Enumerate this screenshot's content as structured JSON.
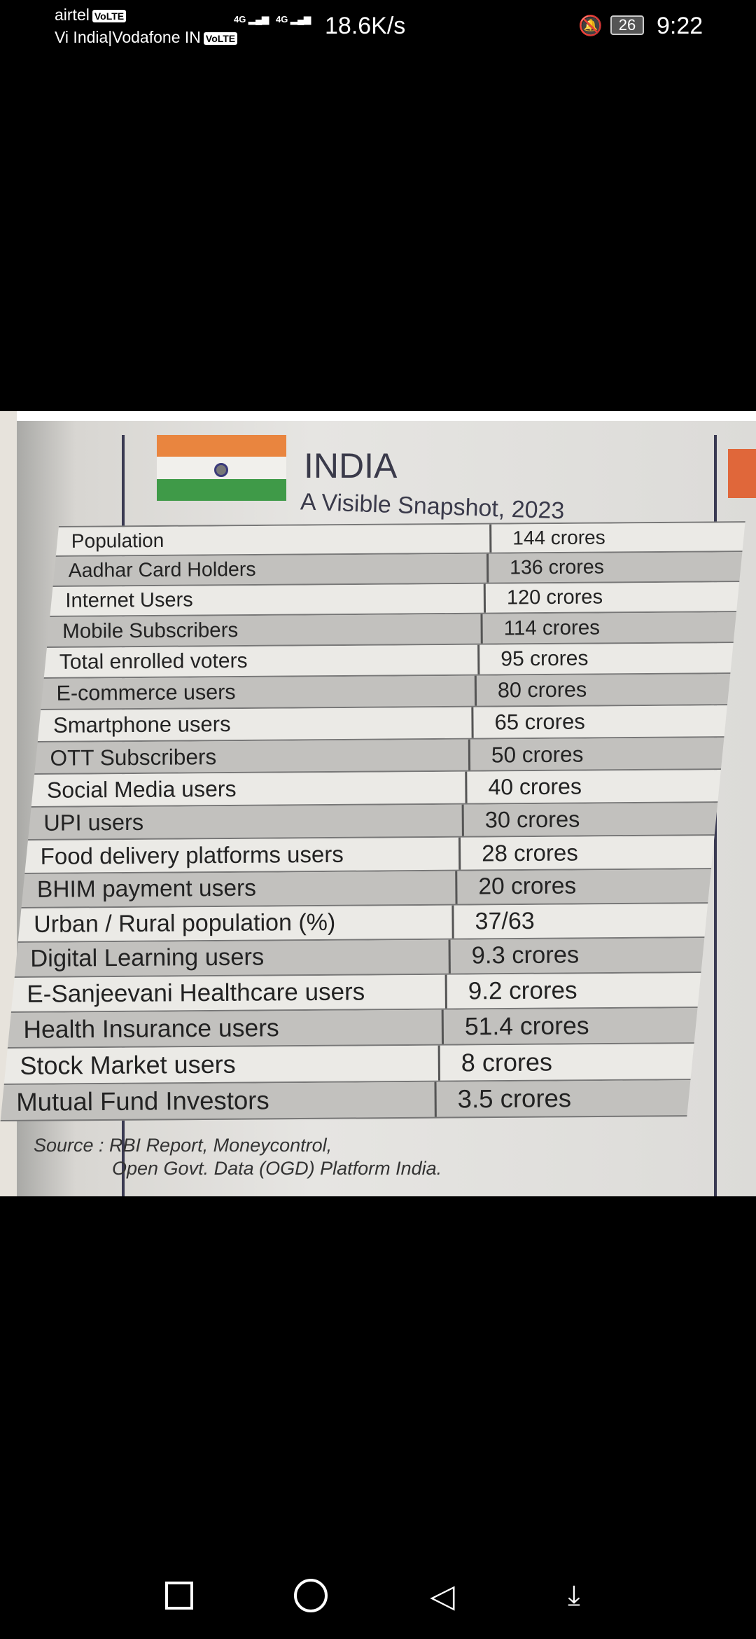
{
  "status_bar": {
    "carrier1": "airtel",
    "carrier2": "Vi India|Vodafone IN",
    "volte": "VoLTE",
    "network1": "4G",
    "network2": "4G",
    "speed": "18.6K/s",
    "battery": "26",
    "time": "9:22"
  },
  "photo": {
    "title": "INDIA",
    "subtitle": "A Visible Snapshot, 2023",
    "rows": [
      {
        "label": "Population",
        "value": "144 crores"
      },
      {
        "label": "Aadhar Card Holders",
        "value": "136 crores"
      },
      {
        "label": "Internet Users",
        "value": "120 crores"
      },
      {
        "label": "Mobile Subscribers",
        "value": "114 crores"
      },
      {
        "label": "Total enrolled voters",
        "value": "95 crores"
      },
      {
        "label": "E-commerce users",
        "value": "80 crores"
      },
      {
        "label": "Smartphone users",
        "value": "65 crores"
      },
      {
        "label": "OTT Subscribers",
        "value": "50 crores"
      },
      {
        "label": "Social Media users",
        "value": "40 crores"
      },
      {
        "label": "UPI users",
        "value": "30 crores"
      },
      {
        "label": "Food delivery platforms users",
        "value": "28 crores"
      },
      {
        "label": "BHIM payment users",
        "value": "20 crores"
      },
      {
        "label": "Urban / Rural population (%)",
        "value": "37/63"
      },
      {
        "label": "Digital Learning users",
        "value": "9.3 crores"
      },
      {
        "label": "E-Sanjeevani Healthcare users",
        "value": "9.2 crores"
      },
      {
        "label": "Health Insurance users",
        "value": "51.4 crores"
      },
      {
        "label": "Stock Market users",
        "value": "8 crores"
      },
      {
        "label": "Mutual Fund Investors",
        "value": "3.5 crores"
      }
    ],
    "source_line1": "Source : RBI Report, Moneycontrol,",
    "source_line2": "Open Govt. Data (OGD) Platform India."
  },
  "nav": {
    "recents_icon": "square",
    "home_icon": "circle",
    "back_icon": "triangle-left",
    "notifications_icon": "pull-down-arrow"
  }
}
